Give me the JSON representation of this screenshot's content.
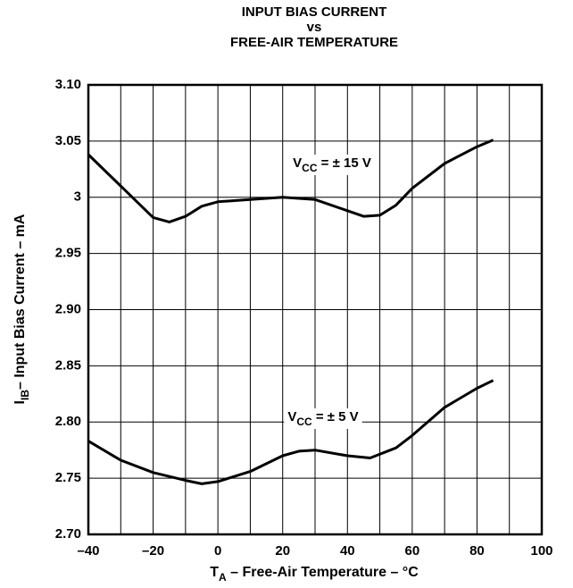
{
  "chart_data": {
    "type": "line",
    "title": [
      "INPUT BIAS CURRENT",
      "vs",
      "FREE-AIR TEMPERATURE"
    ],
    "x_label": {
      "main": "T",
      "sub": "A",
      "rest": " – Free-Air Temperature – °C"
    },
    "y_label": {
      "main": "I",
      "sub": "IB",
      "rest": "– Input Bias Current – mA"
    },
    "xlim": [
      -40,
      100
    ],
    "xticks": [
      {
        "value": -40,
        "label": "–40"
      },
      {
        "value": -20,
        "label": "–20"
      },
      0,
      20,
      40,
      60,
      80,
      100
    ],
    "xminorticks": [
      -30,
      -10,
      10,
      30,
      50,
      70,
      90
    ],
    "ylim": [
      2.7,
      3.1
    ],
    "yticks": [
      {
        "value": 2.7,
        "label": "2.70"
      },
      2.75,
      {
        "value": 2.8,
        "label": "2.80"
      },
      2.85,
      {
        "value": 2.9,
        "label": "2.90"
      },
      2.95,
      3,
      3.05,
      {
        "value": 3.1,
        "label": "3.10"
      }
    ],
    "grid": true,
    "series": [
      {
        "label": {
          "main": "V",
          "sub": "CC",
          "rest": " = ± 15 V"
        },
        "color": "#000000",
        "x": [
          -40,
          -30,
          -20,
          -15,
          -10,
          -5,
          0,
          10,
          20,
          30,
          40,
          45,
          50,
          55,
          60,
          70,
          80,
          85
        ],
        "values": [
          3.038,
          3.01,
          2.982,
          2.978,
          2.983,
          2.992,
          2.996,
          2.998,
          3.0,
          2.998,
          2.988,
          2.983,
          2.984,
          2.993,
          3.008,
          3.03,
          3.045,
          3.051
        ]
      },
      {
        "label": {
          "main": "V",
          "sub": "CC",
          "rest": " = ± 5 V"
        },
        "color": "#000000",
        "x": [
          -40,
          -30,
          -20,
          -10,
          -5,
          0,
          10,
          20,
          25,
          30,
          40,
          47,
          55,
          60,
          70,
          80,
          85
        ],
        "values": [
          2.783,
          2.766,
          2.755,
          2.748,
          2.745,
          2.747,
          2.756,
          2.77,
          2.774,
          2.775,
          2.77,
          2.768,
          2.777,
          2.788,
          2.813,
          2.83,
          2.837
        ]
      }
    ]
  }
}
